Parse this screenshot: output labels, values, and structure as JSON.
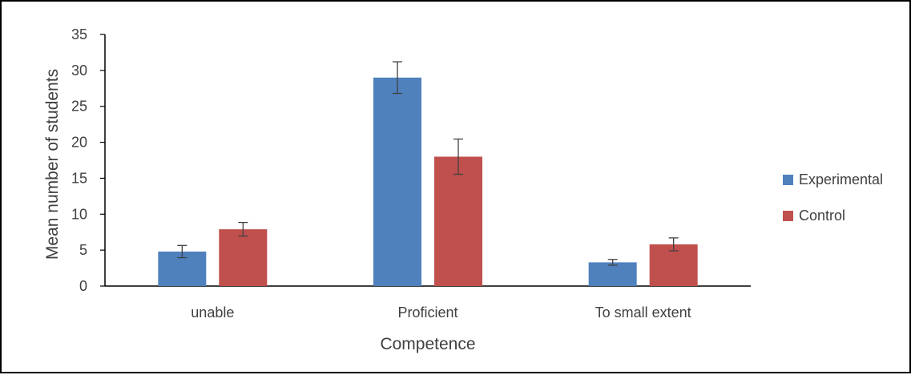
{
  "chart_data": {
    "type": "bar",
    "xlabel": "Competence",
    "ylabel": "Mean number of students",
    "categories": [
      "unable",
      "Proficient",
      "To small extent"
    ],
    "series": [
      {
        "name": "Experimental",
        "color": "#4f81bd",
        "values": [
          4.8,
          29.0,
          3.3
        ],
        "errors": [
          0.85,
          2.2,
          0.4
        ]
      },
      {
        "name": "Control",
        "color": "#c0504d",
        "values": [
          7.9,
          18.0,
          5.8
        ],
        "errors": [
          0.95,
          2.45,
          0.9
        ]
      }
    ],
    "ylim": [
      0,
      35
    ],
    "yticks": [
      0,
      5,
      10,
      15,
      20,
      25,
      30,
      35
    ],
    "grid": false,
    "legend_position": "right"
  }
}
